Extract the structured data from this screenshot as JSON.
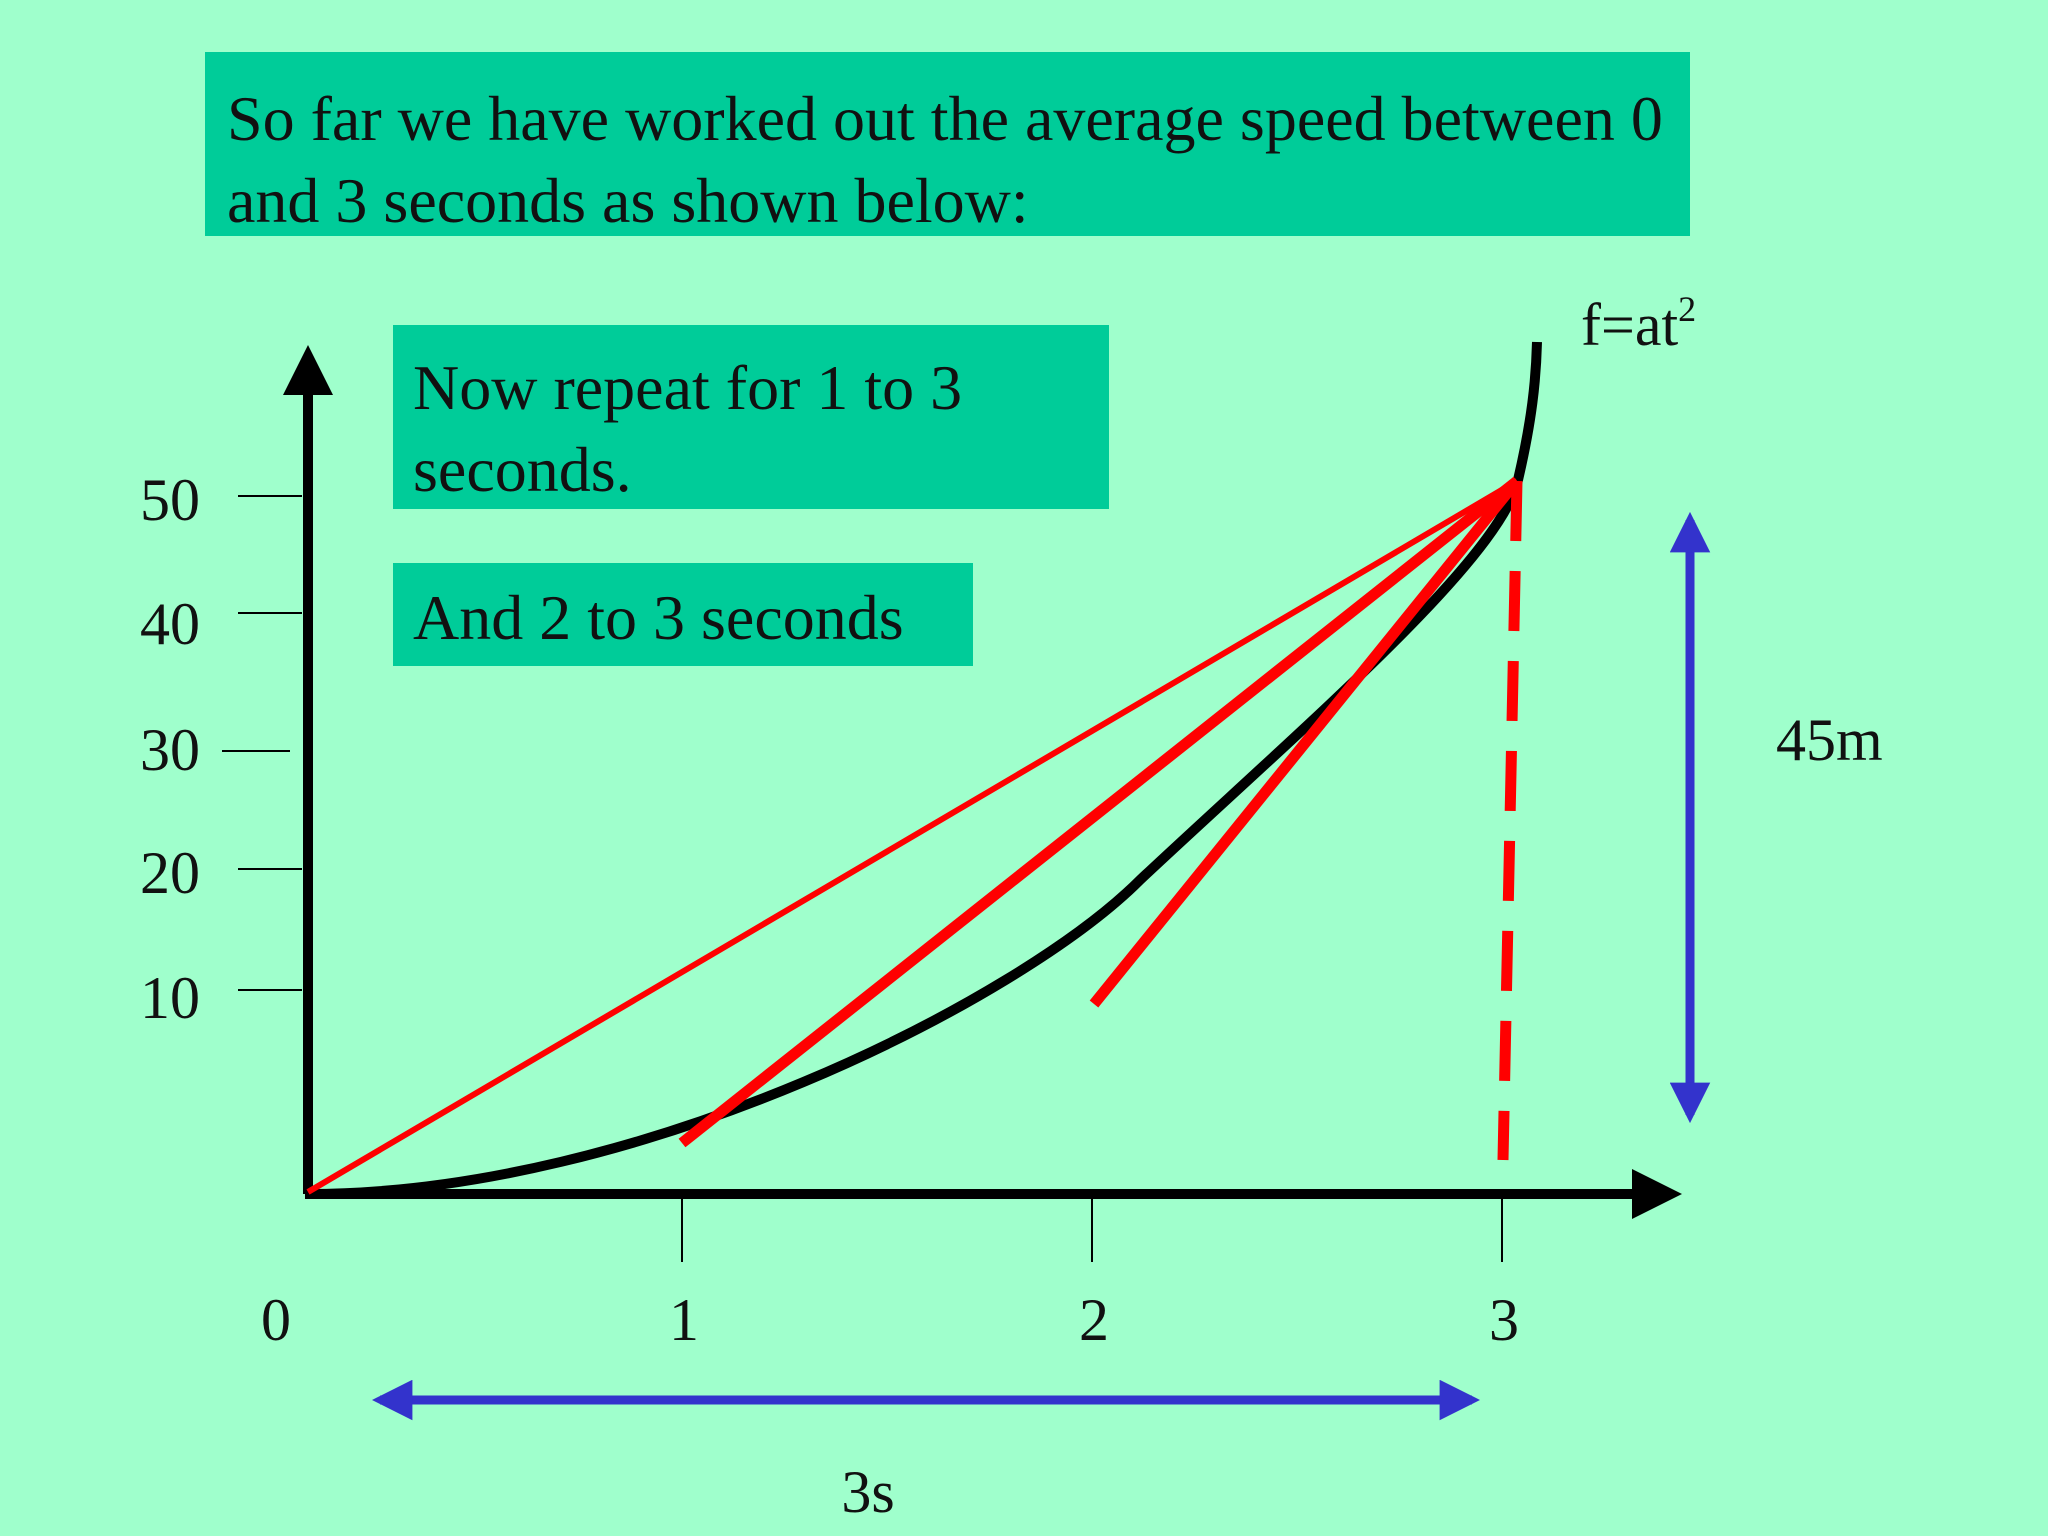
{
  "colors": {
    "background": "#9fffcc",
    "text_box": "#00cc99",
    "curve": "#000000",
    "chords": "#ff0000",
    "dimension_arrows": "#3333cc"
  },
  "boxes": {
    "intro": "So far we have worked out the average speed between 0 and 3 seconds as shown below:",
    "repeat": "Now repeat for 1 to 3 seconds.",
    "and": "And 2 to 3 seconds"
  },
  "chart_data": {
    "type": "line",
    "curve_label": "f=at",
    "curve_label_exponent": "2",
    "x_ticks": [
      "0",
      "1",
      "2",
      "3"
    ],
    "y_ticks": [
      "10",
      "20",
      "30",
      "40",
      "50"
    ],
    "series": [
      {
        "x": [
          0,
          0.5,
          1,
          1.5,
          2,
          2.5,
          3
        ],
        "y": [
          0,
          1.25,
          5,
          11.25,
          20,
          31.25,
          45
        ]
      }
    ],
    "chords": [
      {
        "from": 0,
        "to": 3
      },
      {
        "from": 1,
        "to": 3
      },
      {
        "from": 2,
        "to": 3
      }
    ],
    "dimensions": {
      "height_label": "45m",
      "width_label": "3s"
    }
  }
}
